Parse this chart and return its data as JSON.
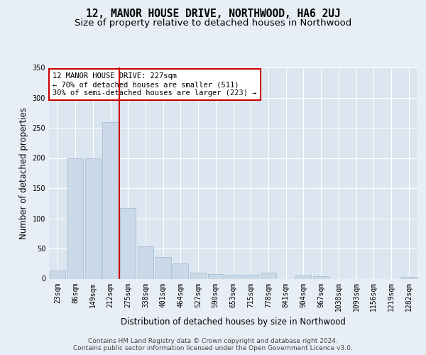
{
  "title": "12, MANOR HOUSE DRIVE, NORTHWOOD, HA6 2UJ",
  "subtitle": "Size of property relative to detached houses in Northwood",
  "xlabel": "Distribution of detached houses by size in Northwood",
  "ylabel": "Number of detached properties",
  "bar_labels": [
    "23sqm",
    "86sqm",
    "149sqm",
    "212sqm",
    "275sqm",
    "338sqm",
    "401sqm",
    "464sqm",
    "527sqm",
    "590sqm",
    "653sqm",
    "715sqm",
    "778sqm",
    "841sqm",
    "904sqm",
    "967sqm",
    "1030sqm",
    "1093sqm",
    "1156sqm",
    "1219sqm",
    "1282sqm"
  ],
  "bar_values": [
    13,
    200,
    200,
    260,
    117,
    53,
    36,
    25,
    10,
    8,
    7,
    7,
    10,
    0,
    5,
    4,
    0,
    0,
    0,
    0,
    3
  ],
  "bar_color": "#c9d9e8",
  "bar_edge_color": "#a0b8d0",
  "vline_x_idx": 3,
  "vline_color": "#cc0000",
  "annotation_text": "12 MANOR HOUSE DRIVE: 227sqm\n← 70% of detached houses are smaller (511)\n30% of semi-detached houses are larger (223) →",
  "annotation_box_color": "#ffffff",
  "annotation_box_edge": "#cc0000",
  "ylim": [
    0,
    350
  ],
  "yticks": [
    0,
    50,
    100,
    150,
    200,
    250,
    300,
    350
  ],
  "background_color": "#e8eef5",
  "plot_bg_color": "#dce6f0",
  "grid_color": "#ffffff",
  "footer_text": "Contains HM Land Registry data © Crown copyright and database right 2024.\nContains public sector information licensed under the Open Government Licence v3.0.",
  "title_fontsize": 10.5,
  "subtitle_fontsize": 9.5,
  "xlabel_fontsize": 8.5,
  "ylabel_fontsize": 8.5,
  "tick_fontsize": 7,
  "annotation_fontsize": 7.5
}
